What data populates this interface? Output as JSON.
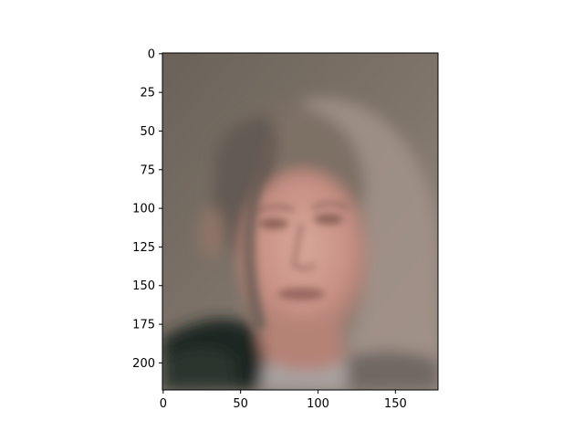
{
  "chart_data": {
    "type": "image",
    "title": "",
    "xlabel": "",
    "ylabel": "",
    "image_width": 178,
    "image_height": 218,
    "xlim": [
      -0.5,
      177.5
    ],
    "ylim": [
      217.5,
      -0.5
    ],
    "x_ticks": [
      0,
      50,
      100,
      150
    ],
    "y_ticks": [
      0,
      25,
      50,
      75,
      100,
      125,
      150,
      175,
      200
    ],
    "grid": false,
    "legend": "none",
    "colors": {
      "background_top": "#6f675f",
      "background_mid": "#857a70",
      "background_right": "#9a8c82",
      "hair": "#7d6f65",
      "skin": "#c89185",
      "skin_light": "#d8a89a",
      "skin_shadow": "#9e7166",
      "jacket": "#1f2521",
      "jacket_green": "#2c3a31",
      "collar": "#a8a2a0",
      "axis": "#000000"
    }
  }
}
